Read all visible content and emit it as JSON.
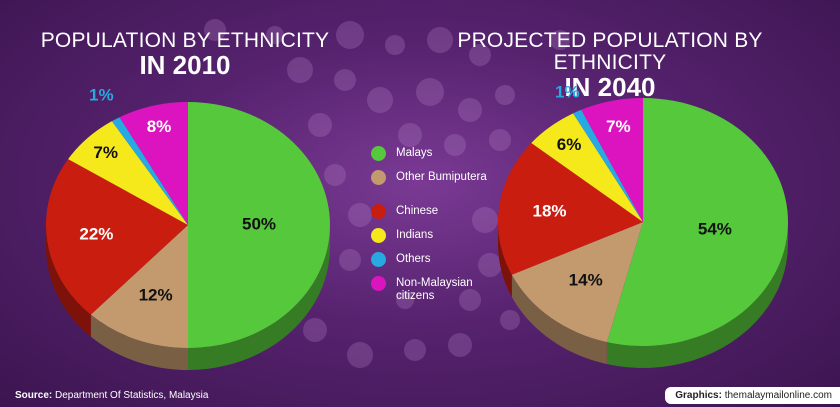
{
  "colors": {
    "malays": "#55c83c",
    "other_bumiputera": "#c39a6e",
    "chinese": "#c91d10",
    "indians": "#f5e91c",
    "others": "#27a9e1",
    "non_malaysian": "#dc14bf"
  },
  "chart_data": [
    {
      "type": "pie",
      "title": "POPULATION BY ETHNICITY",
      "subtitle": "IN 2010",
      "categories": [
        "Malays",
        "Other Bumiputera",
        "Chinese",
        "Indians",
        "Others",
        "Non-Malaysian citizens"
      ],
      "values": [
        50,
        12,
        22,
        7,
        1,
        8
      ],
      "labels": [
        "50%",
        "12%",
        "22%",
        "7%",
        "1%",
        "8%"
      ]
    },
    {
      "type": "pie",
      "title": "PROJECTED POPULATION BY ETHNICITY",
      "subtitle": "IN 2040",
      "categories": [
        "Malays",
        "Other Bumiputera",
        "Chinese",
        "Indians",
        "Others",
        "Non-Malaysian citizens"
      ],
      "values": [
        54,
        14,
        18,
        6,
        1,
        7
      ],
      "labels": [
        "54%",
        "14%",
        "18%",
        "6%",
        "1%",
        "7%"
      ]
    }
  ],
  "legend": {
    "items": [
      {
        "label": "Malays",
        "color_key": "malays"
      },
      {
        "label": "Other Bumiputera",
        "color_key": "other_bumiputera"
      },
      {
        "label": "Chinese",
        "color_key": "chinese"
      },
      {
        "label": "Indians",
        "color_key": "indians"
      },
      {
        "label": "Others",
        "color_key": "others"
      },
      {
        "label": "Non-Malaysian citizens",
        "color_key": "non_malaysian"
      }
    ]
  },
  "footer": {
    "source_label": "Source:",
    "source_text": "Department Of Statistics, Malaysia",
    "graphics_label": "Graphics:",
    "graphics_text": "themalaymailonline.com"
  }
}
